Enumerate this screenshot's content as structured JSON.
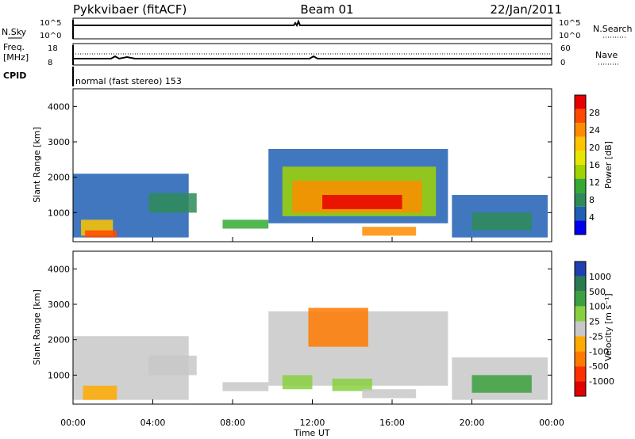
{
  "header": {
    "title": "Pykkvibaer (fitACF)",
    "beam": "Beam 01",
    "date": "22/Jan/2011"
  },
  "top_panels": {
    "nsky_label": "N.Sky",
    "nsearch_label": "N.Search",
    "n_ticks": [
      "10^5",
      "10^0"
    ],
    "freq_label_1": "Freq.",
    "freq_label_2": "[MHz]",
    "freq_ticks": [
      "18",
      "8"
    ],
    "nave_label": "Nave",
    "nave_ticks": [
      "60",
      "0"
    ],
    "cpid_label": "CPID",
    "cpid_value": "normal (fast stereo) 153"
  },
  "colorbars": {
    "power": {
      "label": "Power [dB]",
      "ticks": [
        "28",
        "24",
        "20",
        "16",
        "12",
        "8",
        "4"
      ],
      "colors": [
        "#e60000",
        "#ff4a00",
        "#ff8c00",
        "#ffc400",
        "#e6e600",
        "#9fd400",
        "#33aa33",
        "#2e8b57",
        "#1f5fb4",
        "#0000ee"
      ]
    },
    "velocity": {
      "label": "Velocity [m s⁻¹]",
      "ticks": [
        "1000",
        "500",
        "100",
        "25",
        "-25",
        "-100",
        "-500",
        "-1000"
      ],
      "colors": [
        "#2040b0",
        "#2a7a50",
        "#3ca040",
        "#88d040",
        "#c8c8c8",
        "#ffaa00",
        "#ff7a00",
        "#ff3000",
        "#e00000"
      ]
    }
  },
  "chart_data": [
    {
      "type": "heatmap",
      "name": "power",
      "ylabel": "Slant Range [km]",
      "yticks": [
        1000,
        2000,
        3000,
        4000
      ],
      "ylim": [
        180,
        4500
      ],
      "xlim": [
        0,
        24
      ],
      "regions": [
        {
          "t": [
            0.0,
            5.8
          ],
          "r": [
            300,
            2100
          ],
          "color": "#1f5fb4"
        },
        {
          "t": [
            0.4,
            2.0
          ],
          "r": [
            350,
            800
          ],
          "color": "#ffc400"
        },
        {
          "t": [
            0.6,
            2.2
          ],
          "r": [
            300,
            500
          ],
          "color": "#ff4a00"
        },
        {
          "t": [
            3.8,
            6.2
          ],
          "r": [
            1000,
            1550
          ],
          "color": "#2e8b57"
        },
        {
          "t": [
            7.5,
            9.8
          ],
          "r": [
            550,
            800
          ],
          "color": "#33aa33"
        },
        {
          "t": [
            9.8,
            18.8
          ],
          "r": [
            700,
            2800
          ],
          "color": "#1f5fb4"
        },
        {
          "t": [
            10.5,
            18.2
          ],
          "r": [
            900,
            2300
          ],
          "color": "#9fd400"
        },
        {
          "t": [
            11.0,
            17.5
          ],
          "r": [
            1000,
            1900
          ],
          "color": "#ff8c00"
        },
        {
          "t": [
            12.5,
            16.5
          ],
          "r": [
            1100,
            1500
          ],
          "color": "#e60000"
        },
        {
          "t": [
            14.5,
            17.2
          ],
          "r": [
            350,
            600
          ],
          "color": "#ff8c00"
        },
        {
          "t": [
            19.0,
            23.8
          ],
          "r": [
            300,
            1500
          ],
          "color": "#1f5fb4"
        },
        {
          "t": [
            20.0,
            23.0
          ],
          "r": [
            500,
            1000
          ],
          "color": "#2e8b57"
        }
      ]
    },
    {
      "type": "heatmap",
      "name": "velocity",
      "ylabel": "Slant Range [km]",
      "yticks": [
        1000,
        2000,
        3000,
        4000
      ],
      "ylim": [
        180,
        4500
      ],
      "xlim": [
        0,
        24
      ],
      "xlabel": "Time UT",
      "xticks": [
        "00:00",
        "04:00",
        "08:00",
        "12:00",
        "16:00",
        "20:00",
        "00:00"
      ],
      "regions": [
        {
          "t": [
            0.0,
            5.8
          ],
          "r": [
            300,
            2100
          ],
          "color": "#c8c8c8"
        },
        {
          "t": [
            0.5,
            2.2
          ],
          "r": [
            300,
            700
          ],
          "color": "#ffaa00"
        },
        {
          "t": [
            3.8,
            6.2
          ],
          "r": [
            1000,
            1550
          ],
          "color": "#c8c8c8"
        },
        {
          "t": [
            7.5,
            9.8
          ],
          "r": [
            550,
            800
          ],
          "color": "#c8c8c8"
        },
        {
          "t": [
            9.8,
            18.8
          ],
          "r": [
            700,
            2800
          ],
          "color": "#c8c8c8"
        },
        {
          "t": [
            11.8,
            14.8
          ],
          "r": [
            1800,
            2900
          ],
          "color": "#ff7a00"
        },
        {
          "t": [
            10.5,
            12.0
          ],
          "r": [
            600,
            1000
          ],
          "color": "#88d040"
        },
        {
          "t": [
            13.0,
            15.0
          ],
          "r": [
            550,
            900
          ],
          "color": "#88d040"
        },
        {
          "t": [
            14.5,
            17.2
          ],
          "r": [
            350,
            600
          ],
          "color": "#c8c8c8"
        },
        {
          "t": [
            19.0,
            23.8
          ],
          "r": [
            300,
            1500
          ],
          "color": "#c8c8c8"
        },
        {
          "t": [
            20.0,
            23.0
          ],
          "r": [
            500,
            1000
          ],
          "color": "#3ca040"
        }
      ]
    }
  ]
}
